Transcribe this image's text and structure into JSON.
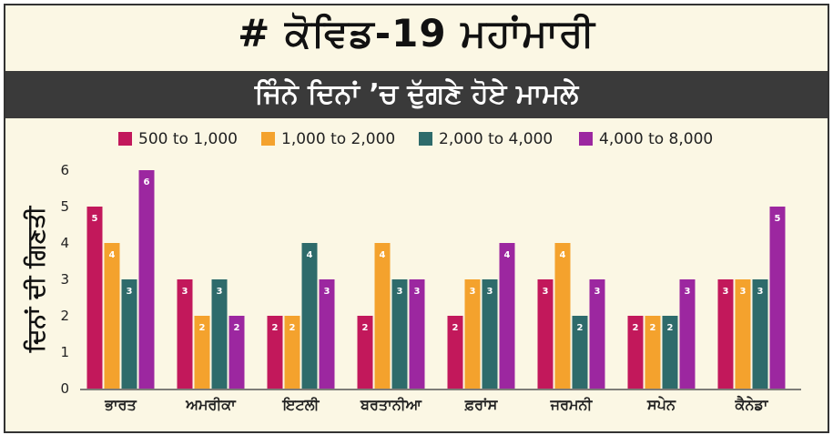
{
  "header": {
    "title": "# ਕੋਵਿਡ-19 ਮਹਾਂਮਾਰੀ",
    "subtitle": "ਜਿੰਨੇ ਦਿਨਾਂ ’ਚ ਦੁੱਗਣੇ ਹੋਏ ਮਾਮਲੇ"
  },
  "colors": {
    "background": "#fbf7e4",
    "subtitle_bar": "#3a3a3a",
    "series": [
      "#c2185b",
      "#f4a22d",
      "#2e6b6b",
      "#9c27a0"
    ]
  },
  "chart_data": {
    "type": "bar",
    "title": "",
    "xlabel": "",
    "ylabel": "ਦਿਨਾਂ ਦੀ ਗਿਣਤੀ",
    "ylim": [
      0,
      6
    ],
    "yticks": [
      "0",
      "1",
      "2",
      "3",
      "4",
      "5",
      "6"
    ],
    "grid": false,
    "legend_position": "top",
    "categories": [
      "ਭਾਰਤ",
      "ਅਮਰੀਕਾ",
      "ਇਟਲੀ",
      "ਬਰਤਾਨੀਆ",
      "ਫ਼ਰਾਂਸ",
      "ਜਰਮਨੀ",
      "ਸਪੇਨ",
      "ਕੈਨੇਡਾ"
    ],
    "series": [
      {
        "name": "500 to 1,000",
        "values": [
          5,
          3,
          2,
          2,
          2,
          3,
          2,
          3
        ]
      },
      {
        "name": "1,000 to 2,000",
        "values": [
          4,
          2,
          2,
          4,
          3,
          4,
          2,
          3
        ]
      },
      {
        "name": "2,000 to 4,000",
        "values": [
          3,
          3,
          4,
          3,
          3,
          2,
          2,
          3
        ]
      },
      {
        "name": "4,000 to 8,000",
        "values": [
          6,
          2,
          3,
          3,
          4,
          3,
          3,
          5
        ]
      }
    ]
  }
}
